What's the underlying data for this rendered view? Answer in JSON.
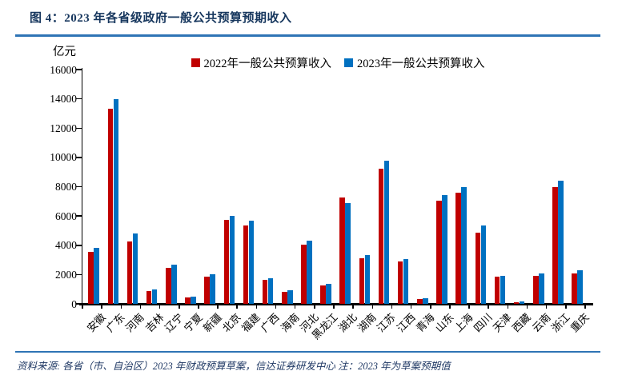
{
  "figure": {
    "title": "图 4：2023 年各省级政府一般公共预算预期收入",
    "source_note": "资料来源: 各省（市、自治区）2023 年财政预算草案，信达证券研发中心  注：2023 年为草案预期值"
  },
  "chart_data": {
    "type": "bar",
    "title": "2023 年各省级政府一般公共预算预期收入",
    "unit_label": "亿元",
    "ylabel": "亿元",
    "ylim": [
      0,
      16000
    ],
    "ytick_step": 2000,
    "yticks": [
      0,
      2000,
      4000,
      6000,
      8000,
      10000,
      12000,
      14000,
      16000
    ],
    "grid": false,
    "legend_position": "top",
    "categories": [
      "安徽",
      "广东",
      "河南",
      "吉林",
      "辽宁",
      "宁夏",
      "新疆",
      "北京",
      "福建",
      "广西",
      "海南",
      "河北",
      "黑龙江",
      "湖北",
      "湖南",
      "江苏",
      "江西",
      "青海",
      "山东",
      "上海",
      "四川",
      "天津",
      "西藏",
      "云南",
      "浙江",
      "重庆"
    ],
    "series": [
      {
        "name": "2022年一般公共预算收入",
        "color": "#C00000",
        "values": [
          3550,
          13300,
          4250,
          850,
          2480,
          420,
          1880,
          5720,
          5360,
          1630,
          820,
          4030,
          1250,
          7250,
          3100,
          9230,
          2900,
          330,
          7060,
          7600,
          4840,
          1830,
          130,
          1910,
          8000,
          2060
        ]
      },
      {
        "name": "2023年一般公共预算收入",
        "color": "#0070C0",
        "values": [
          3820,
          13960,
          4820,
          960,
          2650,
          480,
          2040,
          5990,
          5690,
          1770,
          925,
          4340,
          1370,
          6890,
          3350,
          9760,
          3050,
          355,
          7440,
          7980,
          5330,
          1900,
          170,
          2060,
          8430,
          2270
        ]
      }
    ]
  },
  "colors": {
    "title_text": "#17375E",
    "rule": "#2E74B5",
    "axis": "#000000",
    "bar_2022": "#C00000",
    "bar_2023": "#0070C0",
    "footer_text": "#1F3864"
  }
}
